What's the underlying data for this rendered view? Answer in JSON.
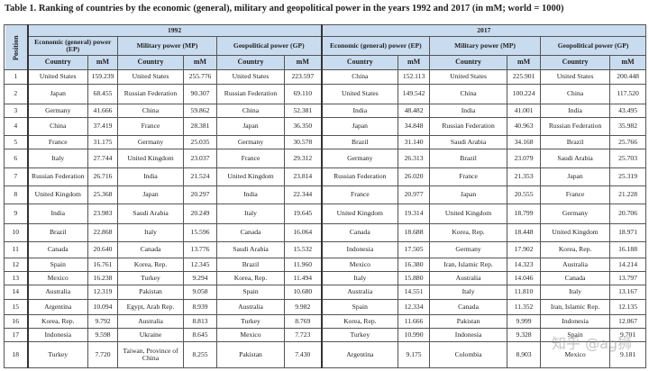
{
  "title": "Table 1. Ranking of countries by the economic (general), military and geopolitical power in the years 1992 and 2017 (in mM; world = 1000)",
  "header": {
    "position": "Position",
    "years": [
      "1992",
      "2017"
    ],
    "groups_1992": [
      "Economic (general) power (EP)",
      "Military power (MP)",
      "Geopolitical power (GP)"
    ],
    "groups_2017": [
      "Economic (general) power (EP)",
      "Military power (MP)",
      "Geopolitical power (GP)"
    ],
    "country": "Country",
    "mm": "mM"
  },
  "rows": [
    [
      "1",
      "United States",
      "159.239",
      "United States",
      "255.776",
      "United States",
      "223.597",
      "China",
      "152.113",
      "United States",
      "225.901",
      "United States",
      "200.448"
    ],
    [
      "2",
      "Japan",
      "68.455",
      "Russian Federation",
      "90.307",
      "Russian Federation",
      "69.110",
      "United States",
      "149.542",
      "China",
      "100.224",
      "China",
      "117.520"
    ],
    [
      "3",
      "Germany",
      "41.666",
      "China",
      "59.862",
      "China",
      "52.381",
      "India",
      "48.482",
      "India",
      "41.001",
      "India",
      "43.495"
    ],
    [
      "4",
      "China",
      "37.419",
      "France",
      "28.381",
      "Japan",
      "36.350",
      "Japan",
      "34.848",
      "Russian Federation",
      "40.963",
      "Russian Federation",
      "35.982"
    ],
    [
      "5",
      "France",
      "31.175",
      "Germany",
      "25.035",
      "Germany",
      "30.578",
      "Brazil",
      "31.140",
      "Saudi Arabia",
      "34.168",
      "Brazil",
      "25.766"
    ],
    [
      "6",
      "Italy",
      "27.744",
      "United Kingdom",
      "23.037",
      "France",
      "29.312",
      "Germany",
      "26.313",
      "Brazil",
      "23.079",
      "Saudi Arabia",
      "25.703"
    ],
    [
      "7",
      "Russian Federation",
      "26.716",
      "India",
      "21.524",
      "United Kingdom",
      "23.814",
      "Russian Federation",
      "26.020",
      "France",
      "21.353",
      "Japan",
      "25.319"
    ],
    [
      "8",
      "United Kingdom",
      "25.368",
      "Japan",
      "20.297",
      "India",
      "22.344",
      "France",
      "20.977",
      "Japan",
      "20.555",
      "France",
      "21.228"
    ],
    [
      "9",
      "India",
      "23.983",
      "Saudi Arabia",
      "20.249",
      "Italy",
      "19.645",
      "United Kingdom",
      "19.314",
      "United Kingdom",
      "18.799",
      "Germany",
      "20.706"
    ],
    [
      "10",
      "Brazil",
      "22.868",
      "Italy",
      "15.596",
      "Canada",
      "16.064",
      "Canada",
      "18.688",
      "Korea, Rep.",
      "18.448",
      "United Kingdom",
      "18.971"
    ],
    [
      "11",
      "Canada",
      "20.640",
      "Canada",
      "13.776",
      "Saudi Arabia",
      "15.532",
      "Indonesia",
      "17.505",
      "Germany",
      "17.902",
      "Korea, Rep.",
      "16.188"
    ],
    [
      "12",
      "Spain",
      "16.761",
      "Korea, Rep.",
      "12.345",
      "Brazil",
      "11.960",
      "Mexico",
      "16.380",
      "Iran, Islamic Rep.",
      "14.323",
      "Australia",
      "14.214"
    ],
    [
      "13",
      "Mexico",
      "16.238",
      "Turkey",
      "9.294",
      "Korea, Rep.",
      "11.494",
      "Italy",
      "15.880",
      "Australia",
      "14.046",
      "Canada",
      "13.797"
    ],
    [
      "14",
      "Australia",
      "12.319",
      "Pakistan",
      "9.058",
      "Spain",
      "10.680",
      "Australia",
      "14.551",
      "Italy",
      "11.810",
      "Italy",
      "13.167"
    ],
    [
      "15",
      "Argentina",
      "10.094",
      "Egypt, Arab Rep.",
      "8.939",
      "Australia",
      "9.982",
      "Spain",
      "12.334",
      "Canada",
      "11.352",
      "Iran, Islamic Rep.",
      "12.135"
    ],
    [
      "16",
      "Korea, Rep.",
      "9.792",
      "Australia",
      "8.813",
      "Turkey",
      "8.769",
      "Korea, Rep.",
      "11.666",
      "Pakistan",
      "9.999",
      "Indonesia",
      "12.067"
    ],
    [
      "17",
      "Indonesia",
      "9.598",
      "Ukraine",
      "8.645",
      "Mexico",
      "7.723",
      "Turkey",
      "10.990",
      "Indonesia",
      "9.328",
      "Spain",
      "9.701"
    ],
    [
      "18",
      "Turkey",
      "7.720",
      "Taiwan, Province of China",
      "8.255",
      "Pakistan",
      "7.430",
      "Argentina",
      "9.175",
      "Colombia",
      "8.903",
      "Mexico",
      "9.181"
    ]
  ],
  "watermark": "知乎 @ag狮",
  "colors": {
    "header_bg": "#c9dcef",
    "border": "#555555"
  }
}
